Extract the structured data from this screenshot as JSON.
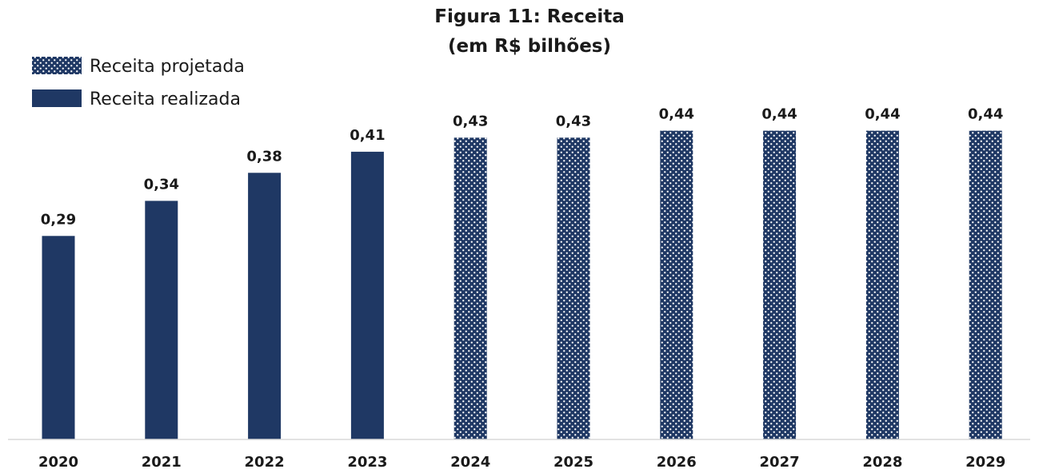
{
  "chart_data": {
    "type": "bar",
    "title": "Figura 11: Receita",
    "subtitle": "(em R$ bilhões)",
    "xlabel": "",
    "ylabel": "",
    "ylim": [
      0,
      0.46
    ],
    "grid": false,
    "legend_position": "top-left",
    "categories": [
      "2020",
      "2021",
      "2022",
      "2023",
      "2024",
      "2025",
      "2026",
      "2027",
      "2028",
      "2029"
    ],
    "values": [
      0.29,
      0.34,
      0.38,
      0.41,
      0.43,
      0.43,
      0.44,
      0.44,
      0.44,
      0.44
    ],
    "value_labels": [
      "0,29",
      "0,34",
      "0,38",
      "0,41",
      "0,43",
      "0,43",
      "0,44",
      "0,44",
      "0,44",
      "0,44"
    ],
    "series": [
      {
        "name": "Receita projetada",
        "style": "dotted",
        "categories": [
          "2024",
          "2025",
          "2026",
          "2027",
          "2028",
          "2029"
        ]
      },
      {
        "name": "Receita realizada",
        "style": "solid",
        "categories": [
          "2020",
          "2021",
          "2022",
          "2023"
        ]
      }
    ],
    "colors": {
      "bar": "#1f3864",
      "dot": "#ffffff",
      "axis": "#d9d9d9"
    }
  }
}
